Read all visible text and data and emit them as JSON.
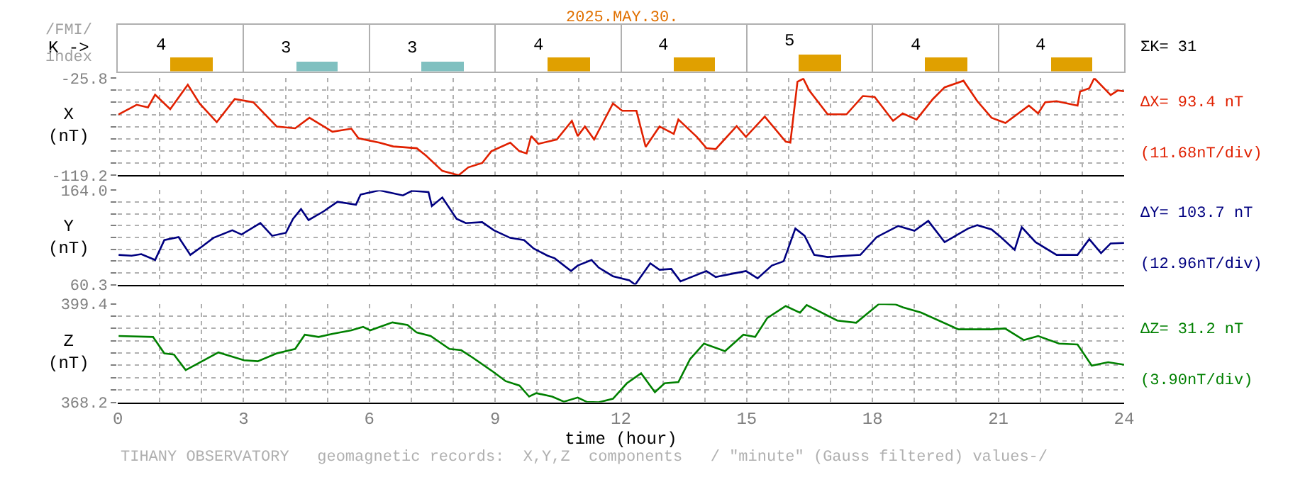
{
  "chart_data": [
    {
      "type": "bar",
      "title": "2025.MAY.30.",
      "ylabel": "K ->",
      "annotations": [
        "/FMI/",
        "index",
        "ΣK= 31"
      ],
      "x": [
        1.75,
        4.75,
        7.75,
        10.75,
        13.75,
        16.75,
        19.75,
        22.75
      ],
      "values": [
        4,
        3,
        3,
        4,
        4,
        5,
        4,
        4
      ],
      "colors": [
        "#e0a000",
        "#80c0c0",
        "#80c0c0",
        "#e0a000",
        "#e0a000",
        "#e0a000",
        "#e0a000",
        "#e0a000"
      ],
      "data_labels": true,
      "xlim": [
        0,
        24
      ],
      "xticks": [
        {
          "value": 0,
          "label": null
        },
        {
          "value": 3,
          "label": null
        },
        {
          "value": 6,
          "label": null
        },
        {
          "value": 9,
          "label": null
        },
        {
          "value": 12,
          "label": null
        },
        {
          "value": 15,
          "label": null
        },
        {
          "value": 18,
          "label": null
        },
        {
          "value": 21,
          "label": null
        },
        {
          "value": 24,
          "label": null
        }
      ],
      "grid": "x",
      "tick_labels": false
    },
    {
      "type": "line",
      "ylabel": "X\n(nT)",
      "annotations": [
        "ΔX= 93.4 nT",
        "(11.68nT/div)"
      ],
      "series": [
        {
          "color": "#e02000",
          "x": [
            0.02,
            0.45,
            0.72,
            0.89,
            1.25,
            1.67,
            1.95,
            2.36,
            2.79,
            3.23,
            3.79,
            4.23,
            4.57,
            5.12,
            5.57,
            5.74,
            6.24,
            6.57,
            7.13,
            7.35,
            7.74,
            8.13,
            8.36,
            8.69,
            8.91,
            9.36,
            9.58,
            9.75,
            9.86,
            10.03,
            10.47,
            10.83,
            10.97,
            11.14,
            11.36,
            11.81,
            12.03,
            12.37,
            12.59,
            12.92,
            13.26,
            13.37,
            13.81,
            14.04,
            14.26,
            14.76,
            14.98,
            15.43,
            15.93,
            16.04,
            16.21,
            16.35,
            16.49,
            16.93,
            17.38,
            17.77,
            18.05,
            18.49,
            18.72,
            19.05,
            19.44,
            19.72,
            20.17,
            20.5,
            20.84,
            21.17,
            21.73,
            21.95,
            22.12,
            22.39,
            22.89,
            22.95,
            23.17,
            23.29,
            23.68,
            23.85,
            24.0
          ],
          "values": [
            -60.6,
            -51.4,
            -53.9,
            -41.7,
            -55.6,
            -32.1,
            -50.1,
            -68.1,
            -45.9,
            -48.9,
            -72.3,
            -74.0,
            -63.9,
            -77.3,
            -74.4,
            -83.6,
            -87.8,
            -91.5,
            -93.2,
            -100.3,
            -115.0,
            -119.2,
            -111.6,
            -107.4,
            -96.1,
            -87.8,
            -96.1,
            -98.2,
            -81.5,
            -89.0,
            -84.8,
            -66.9,
            -81.5,
            -72.3,
            -84.8,
            -50.1,
            -57.2,
            -57.2,
            -91.9,
            -72.3,
            -79.4,
            -65.6,
            -82.3,
            -93.2,
            -94.0,
            -71.9,
            -82.3,
            -62.7,
            -86.9,
            -87.8,
            -29.2,
            -26.3,
            -37.6,
            -60.6,
            -60.6,
            -43.0,
            -43.8,
            -66.9,
            -59.7,
            -65.6,
            -45.9,
            -34.6,
            -28.3,
            -48.0,
            -63.9,
            -68.9,
            -52.2,
            -59.7,
            -48.9,
            -48.0,
            -52.2,
            -38.8,
            -35.5,
            -25.8,
            -42.1,
            -37.6,
            -38.4
          ]
        }
      ],
      "xlim": [
        0,
        24
      ],
      "ylim": [
        -119.2,
        -25.8
      ],
      "xticks": [
        0,
        {
          "value": 1,
          "label": null
        },
        {
          "value": 2,
          "label": null
        },
        3,
        {
          "value": 4,
          "label": null
        },
        {
          "value": 5,
          "label": null
        },
        6,
        {
          "value": 7,
          "label": null
        },
        {
          "value": 8,
          "label": null
        },
        9,
        {
          "value": 10,
          "label": null
        },
        {
          "value": 11,
          "label": null
        },
        12,
        {
          "value": 13,
          "label": null
        },
        {
          "value": 14,
          "label": null
        },
        15,
        {
          "value": 16,
          "label": null
        },
        {
          "value": 17,
          "label": null
        },
        18,
        {
          "value": 19,
          "label": null
        },
        {
          "value": 20,
          "label": null
        },
        21,
        {
          "value": 22,
          "label": null
        },
        {
          "value": 23,
          "label": null
        },
        24
      ],
      "yticks": [
        -25.8,
        {
          "value": -37.48,
          "label": null
        },
        {
          "value": -49.15,
          "label": null
        },
        {
          "value": -60.83,
          "label": null
        },
        {
          "value": -72.5,
          "label": null
        },
        {
          "value": -84.18,
          "label": null
        },
        {
          "value": -95.85,
          "label": null
        },
        {
          "value": -107.53,
          "label": null
        },
        -119.2
      ],
      "grid": true,
      "tick_labels": "y"
    },
    {
      "type": "line",
      "ylabel": "Y\n(nT)",
      "annotations": [
        "ΔY= 103.7 nT",
        "(12.96nT/div)"
      ],
      "series": [
        {
          "color": "#000080",
          "x": [
            0.02,
            0.33,
            0.56,
            0.89,
            1.11,
            1.45,
            1.73,
            2.01,
            2.28,
            2.73,
            2.95,
            3.4,
            3.68,
            4.01,
            4.18,
            4.37,
            4.55,
            4.9,
            5.24,
            5.68,
            5.79,
            6.24,
            6.8,
            7.02,
            7.41,
            7.49,
            7.74,
            8.08,
            8.3,
            8.69,
            8.97,
            9.36,
            9.69,
            9.92,
            10.25,
            10.42,
            10.81,
            10.97,
            11.3,
            11.47,
            11.81,
            12.2,
            12.34,
            12.7,
            12.92,
            13.2,
            13.42,
            14.04,
            14.26,
            14.98,
            15.26,
            15.6,
            15.88,
            16.16,
            16.38,
            16.61,
            16.93,
            17.71,
            18.1,
            18.61,
            19.0,
            19.33,
            19.72,
            20.28,
            20.5,
            20.84,
            21.06,
            21.39,
            21.56,
            21.89,
            22.39,
            22.89,
            23.17,
            23.45,
            23.68,
            24.0
          ],
          "values": [
            93.0,
            92.1,
            93.9,
            87.4,
            109.3,
            112.6,
            93.0,
            102.3,
            111.7,
            120.1,
            115.4,
            128.0,
            114.0,
            117.3,
            132.7,
            143.4,
            131.3,
            140.6,
            151.4,
            148.1,
            159.3,
            164.0,
            158.4,
            163.5,
            162.1,
            146.7,
            156.1,
            132.7,
            128.0,
            129.0,
            120.1,
            111.7,
            109.3,
            100.0,
            92.1,
            89.3,
            75.3,
            81.3,
            87.4,
            79.0,
            69.6,
            65.0,
            60.3,
            83.7,
            76.7,
            77.6,
            64.0,
            75.3,
            68.7,
            75.3,
            67.3,
            81.3,
            86.0,
            122.0,
            114.0,
            93.0,
            90.7,
            93.0,
            112.6,
            124.8,
            119.6,
            130.4,
            107.0,
            122.0,
            125.7,
            121.0,
            112.6,
            98.6,
            123.4,
            107.0,
            93.0,
            93.0,
            110.3,
            94.9,
            105.6,
            106.1
          ]
        }
      ],
      "xlim": [
        0,
        24
      ],
      "ylim": [
        60.3,
        164.0
      ],
      "xticks": [
        0,
        {
          "value": 1,
          "label": null
        },
        {
          "value": 2,
          "label": null
        },
        3,
        {
          "value": 4,
          "label": null
        },
        {
          "value": 5,
          "label": null
        },
        6,
        {
          "value": 7,
          "label": null
        },
        {
          "value": 8,
          "label": null
        },
        9,
        {
          "value": 10,
          "label": null
        },
        {
          "value": 11,
          "label": null
        },
        12,
        {
          "value": 13,
          "label": null
        },
        {
          "value": 14,
          "label": null
        },
        15,
        {
          "value": 16,
          "label": null
        },
        {
          "value": 17,
          "label": null
        },
        18,
        {
          "value": 19,
          "label": null
        },
        {
          "value": 20,
          "label": null
        },
        21,
        {
          "value": 22,
          "label": null
        },
        {
          "value": 23,
          "label": null
        },
        24
      ],
      "yticks": [
        {
          "value": 164.0,
          "label": "164.0"
        },
        {
          "value": 151.04,
          "label": null
        },
        {
          "value": 138.08,
          "label": null
        },
        {
          "value": 125.11,
          "label": null
        },
        {
          "value": 112.15,
          "label": null
        },
        {
          "value": 99.19,
          "label": null
        },
        {
          "value": 86.23,
          "label": null
        },
        {
          "value": 73.26,
          "label": null
        },
        60.3
      ],
      "grid": true,
      "tick_labels": "y"
    },
    {
      "type": "line",
      "ylabel": "Z\n(nT)",
      "xlabel": "time (hour)",
      "annotations": [
        "ΔZ= 31.2 nT",
        "(3.90nT/div)",
        "TIHANY OBSERVATORY   geomagnetic records:  X,Y,Z  components   / \"minute\" (Gauss filtered) values-/"
      ],
      "series": [
        {
          "color": "#008000",
          "x": [
            0.02,
            0.84,
            1.11,
            1.34,
            1.62,
            2.01,
            2.4,
            3.01,
            3.34,
            3.79,
            4.23,
            4.46,
            4.79,
            5.12,
            5.57,
            5.85,
            6.02,
            6.55,
            6.91,
            7.13,
            7.46,
            7.91,
            8.19,
            8.47,
            8.97,
            9.25,
            9.58,
            9.81,
            9.98,
            10.36,
            10.64,
            10.97,
            11.19,
            11.47,
            11.81,
            12.14,
            12.48,
            12.81,
            13.04,
            13.37,
            13.65,
            13.98,
            14.48,
            14.92,
            15.2,
            15.49,
            15.93,
            16.27,
            16.43,
            17.16,
            17.61,
            18.16,
            18.55,
            18.72,
            19.16,
            20.05,
            20.83,
            21.16,
            21.61,
            21.95,
            22.45,
            22.89,
            23.23,
            23.62,
            24.0
          ],
          "values": [
            389.2,
            388.9,
            383.7,
            383.3,
            378.4,
            381.2,
            384.0,
            381.5,
            381.2,
            383.7,
            385.1,
            389.6,
            388.9,
            389.9,
            391.0,
            392.1,
            391.0,
            393.5,
            392.7,
            390.3,
            389.2,
            385.1,
            384.7,
            382.3,
            377.7,
            374.9,
            373.5,
            370.0,
            371.1,
            370.0,
            368.4,
            369.7,
            368.3,
            368.2,
            369.3,
            374.2,
            377.4,
            371.4,
            374.2,
            374.6,
            381.9,
            386.8,
            384.4,
            389.6,
            388.9,
            394.9,
            398.7,
            396.6,
            399.0,
            394.1,
            393.4,
            399.4,
            399.2,
            398.3,
            396.6,
            391.3,
            391.3,
            391.6,
            387.9,
            389.2,
            386.8,
            386.5,
            379.8,
            380.9,
            380.1
          ]
        }
      ],
      "xlim": [
        0,
        24
      ],
      "ylim": [
        368.2,
        399.4
      ],
      "xticks": [
        0,
        {
          "value": 1,
          "label": null
        },
        {
          "value": 2,
          "label": null
        },
        3,
        {
          "value": 4,
          "label": null
        },
        {
          "value": 5,
          "label": null
        },
        6,
        {
          "value": 7,
          "label": null
        },
        {
          "value": 8,
          "label": null
        },
        9,
        {
          "value": 10,
          "label": null
        },
        {
          "value": 11,
          "label": null
        },
        12,
        {
          "value": 13,
          "label": null
        },
        {
          "value": 14,
          "label": null
        },
        15,
        {
          "value": 16,
          "label": null
        },
        {
          "value": 17,
          "label": null
        },
        18,
        {
          "value": 19,
          "label": null
        },
        {
          "value": 20,
          "label": null
        },
        21,
        {
          "value": 22,
          "label": null
        },
        {
          "value": 23,
          "label": null
        },
        24
      ],
      "yticks": [
        399.4,
        {
          "value": 395.5,
          "label": null
        },
        {
          "value": 391.6,
          "label": null
        },
        {
          "value": 387.7,
          "label": null
        },
        {
          "value": 383.8,
          "label": null
        },
        {
          "value": 379.9,
          "label": null
        },
        {
          "value": 376.0,
          "label": null
        },
        {
          "value": 372.1,
          "label": null
        },
        368.2
      ],
      "grid": true
    }
  ]
}
